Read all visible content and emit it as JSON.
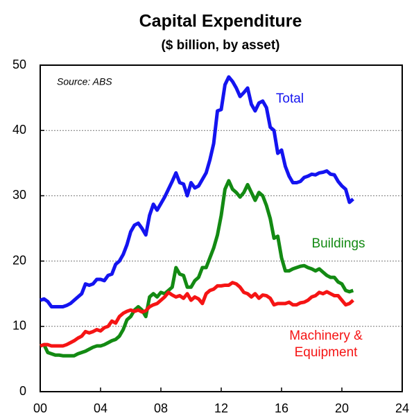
{
  "chart_data": {
    "type": "line",
    "title": "Capital Expenditure",
    "subtitle": "($ billion, by asset)",
    "annotations": [
      "Source: ABS"
    ],
    "x": [
      2000,
      2000.25,
      2000.5,
      2000.75,
      2001,
      2001.25,
      2001.5,
      2001.75,
      2002,
      2002.25,
      2002.5,
      2002.75,
      2003,
      2003.25,
      2003.5,
      2003.75,
      2004,
      2004.25,
      2004.5,
      2004.75,
      2005,
      2005.25,
      2005.5,
      2005.75,
      2006,
      2006.25,
      2006.5,
      2006.75,
      2007,
      2007.25,
      2007.5,
      2007.75,
      2008,
      2008.25,
      2008.5,
      2008.75,
      2009,
      2009.25,
      2009.5,
      2009.75,
      2010,
      2010.25,
      2010.5,
      2010.75,
      2011,
      2011.25,
      2011.5,
      2011.75,
      2012,
      2012.25,
      2012.5,
      2012.75,
      2013,
      2013.25,
      2013.5,
      2013.75,
      2014,
      2014.25,
      2014.5,
      2014.75,
      2015,
      2015.25,
      2015.5,
      2015.75,
      2016,
      2016.25,
      2016.5,
      2016.75,
      2017,
      2017.25,
      2017.5,
      2017.75,
      2018,
      2018.25,
      2018.5,
      2018.75,
      2019,
      2019.25,
      2019.5,
      2019.75,
      2020,
      2020.25,
      2020.5,
      2020.75
    ],
    "series": [
      {
        "name": "Total",
        "color": "#1414f0",
        "values": [
          14,
          14.2,
          13.8,
          13,
          13,
          13,
          13,
          13.2,
          13.5,
          14,
          14.5,
          15,
          16.5,
          16.3,
          16.5,
          17.2,
          17.2,
          17,
          17.8,
          18,
          19.5,
          20,
          21,
          22.5,
          24.5,
          25.5,
          25.8,
          25,
          24,
          27,
          28.7,
          27.8,
          28.8,
          29.8,
          31,
          32.2,
          33.5,
          32,
          31.8,
          30,
          32,
          31.2,
          31.5,
          32.5,
          33.5,
          35.5,
          38,
          43,
          43.2,
          47,
          48.2,
          47.5,
          46.5,
          45.2,
          45.8,
          46.5,
          44,
          43,
          44.2,
          44.5,
          43.5,
          40.5,
          40,
          36.5,
          37,
          34.5,
          33,
          32,
          32,
          32.2,
          32.8,
          33,
          33.3,
          33.2,
          33.5,
          33.6,
          33.8,
          33.3,
          33.2,
          32.2,
          31.5,
          31,
          29,
          29.5
        ]
      },
      {
        "name": "Buildings",
        "color": "#138a13",
        "values": [
          7,
          7.2,
          6,
          5.8,
          5.6,
          5.6,
          5.5,
          5.5,
          5.5,
          5.5,
          5.8,
          6,
          6.2,
          6.5,
          6.8,
          7,
          7,
          7.2,
          7.5,
          7.8,
          8,
          8.5,
          9.5,
          11,
          11.5,
          12.5,
          13,
          12.5,
          11.5,
          14.5,
          15,
          14.5,
          15.2,
          15,
          15.5,
          16,
          19,
          18,
          17.8,
          16,
          16,
          17,
          17.5,
          19,
          19,
          20.5,
          22,
          24,
          27,
          31,
          32.3,
          31,
          30.5,
          29.8,
          30.5,
          31.7,
          30.5,
          29.3,
          30.5,
          30,
          28.5,
          26.5,
          23.5,
          23.8,
          20.5,
          18.5,
          18.5,
          18.8,
          19,
          19.2,
          19.3,
          19,
          18.8,
          18.5,
          18.8,
          18.3,
          17.8,
          17.5,
          17.5,
          16.8,
          16.5,
          15.5,
          15.3,
          15.5
        ]
      },
      {
        "name": "Machinery & Equipment",
        "color": "#f51414",
        "values": [
          7,
          7.2,
          7.2,
          7,
          7,
          7,
          7,
          7.2,
          7.5,
          7.8,
          8.2,
          8.5,
          9.2,
          9,
          9.2,
          9.5,
          9.3,
          9.8,
          10,
          10.8,
          10.5,
          11.5,
          12,
          12.3,
          12.5,
          12.3,
          12.5,
          12.2,
          12.4,
          13,
          13.3,
          13.5,
          14,
          14.5,
          15.2,
          14.8,
          14.5,
          14.7,
          14.3,
          15,
          14,
          14.5,
          14.2,
          13.5,
          15,
          15.5,
          15.7,
          16.2,
          16.2,
          16.3,
          16.3,
          16.7,
          16.5,
          16,
          15.2,
          15,
          14.5,
          15,
          14.3,
          14.8,
          14.7,
          14.3,
          13.3,
          13.5,
          13.5,
          13.5,
          13.7,
          13.3,
          13.3,
          13.6,
          13.7,
          14,
          14.5,
          14.7,
          15.2,
          15,
          15.3,
          15,
          14.7,
          14.7,
          14,
          13.3,
          13.5,
          14
        ]
      }
    ],
    "xlim": [
      2000,
      2024
    ],
    "xticks": [
      {
        "value": 2000,
        "label": "00"
      },
      {
        "value": 2004,
        "label": "04"
      },
      {
        "value": 2008,
        "label": "08"
      },
      {
        "value": 2012,
        "label": "12"
      },
      {
        "value": 2016,
        "label": "16"
      },
      {
        "value": 2020,
        "label": "20"
      },
      {
        "value": 2024,
        "label": "24"
      }
    ],
    "ylim": [
      0,
      50
    ],
    "yticks": [
      0,
      10,
      20,
      30,
      40,
      50
    ],
    "grid": true
  }
}
